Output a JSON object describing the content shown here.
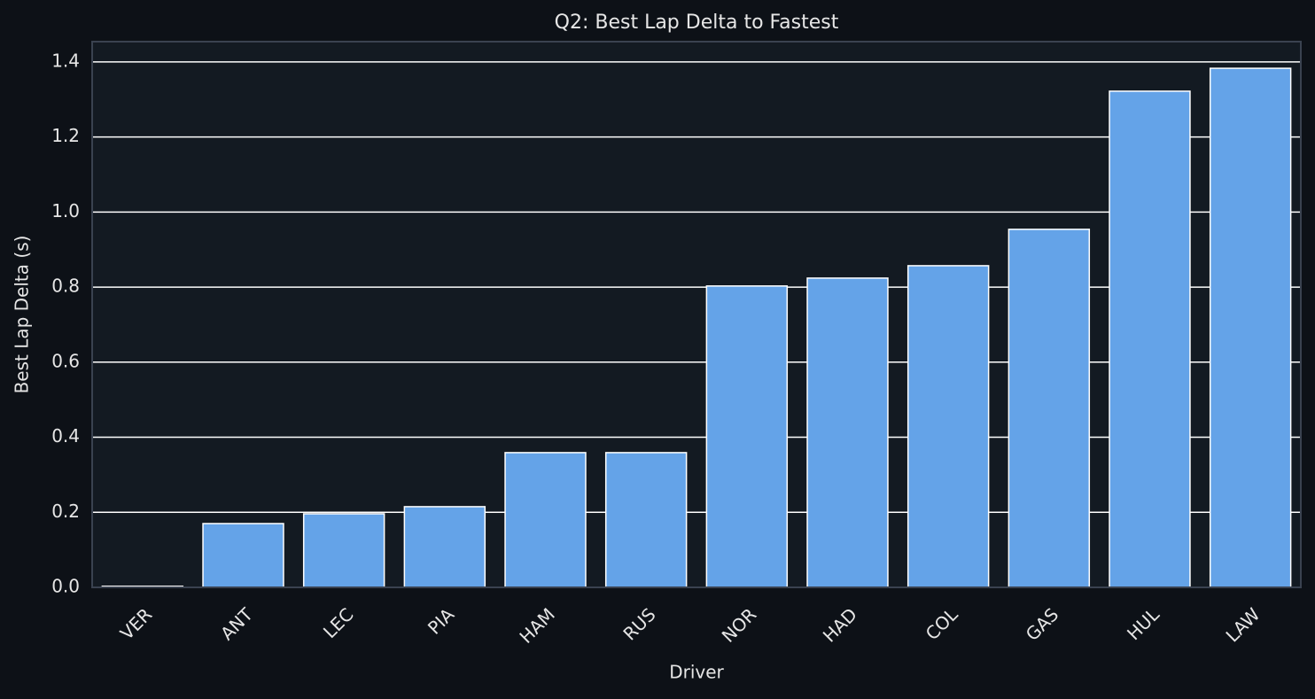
{
  "chart_data": {
    "type": "bar",
    "title": "Q2: Best Lap Delta to Fastest",
    "x_label": "Driver",
    "y_label": "Best Lap Delta (s)",
    "categories": [
      "VER",
      "ANT",
      "LEC",
      "PIA",
      "HAM",
      "RUS",
      "NOR",
      "HAD",
      "COL",
      "GAS",
      "HUL",
      "LAW"
    ],
    "values": [
      0.003,
      0.17,
      0.196,
      0.215,
      0.359,
      0.359,
      0.803,
      0.824,
      0.857,
      0.954,
      1.322,
      1.383
    ],
    "color": "#64a3e8",
    "ylim": [
      0,
      1.454
    ],
    "yticks": [
      {
        "value": 0,
        "label": "0.0"
      },
      0.2,
      0.4,
      0.6,
      0.8,
      {
        "value": 1,
        "label": "1.0"
      },
      1.2,
      1.4
    ],
    "grid": true
  }
}
